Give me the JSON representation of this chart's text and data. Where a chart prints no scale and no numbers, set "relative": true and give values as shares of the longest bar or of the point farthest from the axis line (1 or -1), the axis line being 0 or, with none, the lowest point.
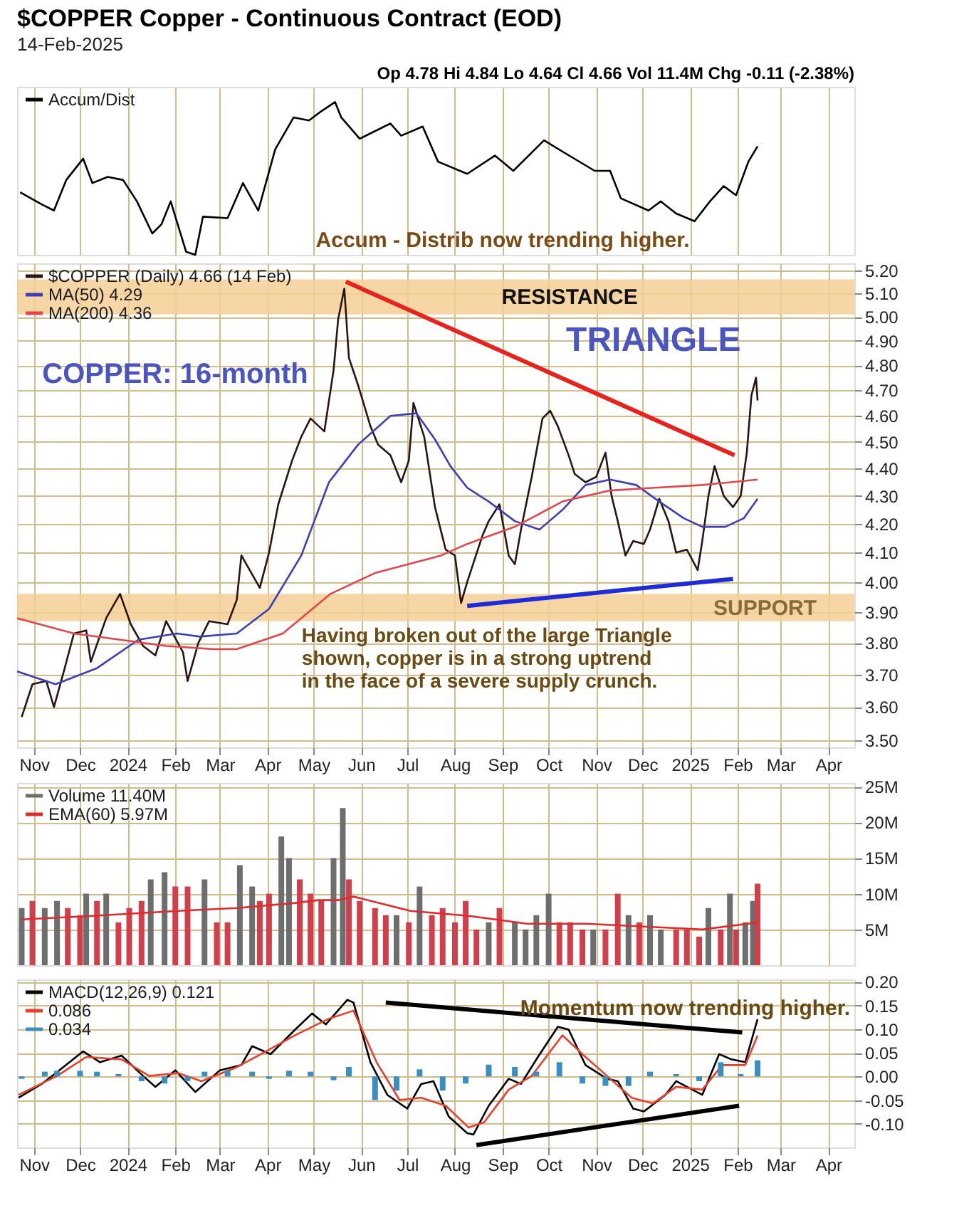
{
  "chart_data": [
    {
      "type": "line",
      "title": "$COPPER Copper - Continuous Contract (EOD)",
      "subtitle": "14-Feb-2025",
      "relative": true,
      "grid": "x",
      "tick_labels": false,
      "legend": "top left",
      "annotations": [
        "Op 4.78  Hi 4.84  Lo 4.64  Cl 4.66  Vol 11.4M  Chg -0.11 (-2.38%)",
        "Accum - Distrib now trending higher."
      ],
      "xlim": [
        "2023-10-21",
        "2025-04-18"
      ],
      "xticks": [
        {
          "value": "2023-11-01",
          "label": null
        },
        {
          "value": "2023-12-01",
          "label": null
        },
        {
          "value": "2024-01-01",
          "label": null
        },
        {
          "value": "2024-02-01",
          "label": null
        },
        {
          "value": "2024-03-01",
          "label": null
        },
        {
          "value": "2024-04-01",
          "label": null
        },
        {
          "value": "2024-05-01",
          "label": null
        },
        {
          "value": "2024-06-01",
          "label": null
        },
        {
          "value": "2024-07-01",
          "label": null
        },
        {
          "value": "2024-08-01",
          "label": null
        },
        {
          "value": "2024-09-01",
          "label": null
        },
        {
          "value": "2024-10-01",
          "label": null
        },
        {
          "value": "2024-11-01",
          "label": null
        },
        {
          "value": "2024-12-01",
          "label": null
        },
        {
          "value": "2025-01-01",
          "label": null
        },
        {
          "value": "2025-02-01",
          "label": null
        },
        {
          "value": "2025-03-01",
          "label": null
        },
        {
          "value": "2025-04-01",
          "label": null
        }
      ],
      "series": [
        {
          "name": "Accum/Dist",
          "color": "#000000",
          "x": [
            "2023-10-23",
            "2023-11-06",
            "2023-11-14",
            "2023-11-22",
            "2023-12-03",
            "2023-12-09",
            "2023-12-19",
            "2023-12-29",
            "2024-01-07",
            "2024-01-17",
            "2024-01-23",
            "2024-01-29",
            "2024-02-08",
            "2024-02-14",
            "2024-02-19",
            "2024-03-06",
            "2024-03-16",
            "2024-03-26",
            "2024-04-06",
            "2024-04-18",
            "2024-04-28",
            "2024-05-06",
            "2024-05-15",
            "2024-05-19",
            "2024-05-31",
            "2024-06-20",
            "2024-06-27",
            "2024-07-11",
            "2024-07-21",
            "2024-08-09",
            "2024-08-27",
            "2024-09-08",
            "2024-09-28",
            "2024-10-11",
            "2024-10-31",
            "2024-11-10",
            "2024-11-17",
            "2024-12-05",
            "2024-12-13",
            "2024-12-23",
            "2025-01-04",
            "2025-01-14",
            "2025-01-23",
            "2025-01-31",
            "2025-02-08",
            "2025-02-14"
          ],
          "values": [
            0.41,
            0.33,
            0.29,
            0.49,
            0.63,
            0.47,
            0.51,
            0.49,
            0.35,
            0.14,
            0.2,
            0.35,
            0.02,
            0.0,
            0.25,
            0.24,
            0.47,
            0.29,
            0.69,
            0.9,
            0.88,
            0.94,
            1.0,
            0.9,
            0.76,
            0.86,
            0.78,
            0.84,
            0.61,
            0.53,
            0.65,
            0.55,
            0.75,
            0.67,
            0.55,
            0.55,
            0.37,
            0.29,
            0.35,
            0.27,
            0.22,
            0.35,
            0.45,
            0.39,
            0.61,
            0.71
          ]
        }
      ]
    },
    {
      "type": "line",
      "log": true,
      "grid": true,
      "legend": "top left",
      "annotations": [
        "COPPER: 16-month",
        "TRIANGLE",
        "Having broken out of the large Triangle\nshown, copper is in a strong uptrend\nin the face of a severe supply crunch."
      ],
      "xlim": [
        "2023-10-21",
        "2025-04-18"
      ],
      "xticks": [
        {
          "value": "2023-11-01",
          "label": "Nov"
        },
        {
          "value": "2023-12-01",
          "label": "Dec"
        },
        {
          "value": "2024-01-01",
          "label": "2024"
        },
        {
          "value": "2024-02-01",
          "label": "Feb"
        },
        {
          "value": "2024-03-01",
          "label": "Mar"
        },
        {
          "value": "2024-04-01",
          "label": "Apr"
        },
        {
          "value": "2024-05-01",
          "label": "May"
        },
        {
          "value": "2024-06-01",
          "label": "Jun"
        },
        {
          "value": "2024-07-01",
          "label": "Jul"
        },
        {
          "value": "2024-08-01",
          "label": "Aug"
        },
        {
          "value": "2024-09-01",
          "label": "Sep"
        },
        {
          "value": "2024-10-01",
          "label": "Oct"
        },
        {
          "value": "2024-11-01",
          "label": "Nov"
        },
        {
          "value": "2024-12-01",
          "label": "Dec"
        },
        {
          "value": "2025-01-01",
          "label": "2025"
        },
        {
          "value": "2025-02-01",
          "label": "Feb"
        },
        {
          "value": "2025-03-01",
          "label": "Mar"
        },
        {
          "value": "2025-04-01",
          "label": "Apr"
        }
      ],
      "ylim": [
        3.48,
        5.23
      ],
      "yticks": [
        {
          "value": 3.5,
          "label": "3.50"
        },
        {
          "value": 3.6,
          "label": "3.60"
        },
        {
          "value": 3.7,
          "label": "3.70"
        },
        {
          "value": 3.8,
          "label": "3.80"
        },
        {
          "value": 3.9,
          "label": "3.90"
        },
        {
          "value": 4.0,
          "label": "4.00"
        },
        {
          "value": 4.1,
          "label": "4.10"
        },
        {
          "value": 4.2,
          "label": "4.20"
        },
        {
          "value": 4.3,
          "label": "4.30"
        },
        {
          "value": 4.4,
          "label": "4.40"
        },
        {
          "value": 4.5,
          "label": "4.50"
        },
        {
          "value": 4.6,
          "label": "4.60"
        },
        {
          "value": 4.7,
          "label": "4.70"
        },
        {
          "value": 4.8,
          "label": "4.80"
        },
        {
          "value": 4.9,
          "label": "4.90"
        },
        {
          "value": 5.0,
          "label": "5.00"
        },
        {
          "value": 5.1,
          "label": "5.10"
        },
        {
          "value": 5.2,
          "label": "5.20"
        }
      ],
      "bands": [
        {
          "axis": "y",
          "from": 5.01,
          "to": 5.16,
          "label": "RESISTANCE",
          "color": "#f6cf96"
        },
        {
          "axis": "y",
          "from": 3.87,
          "to": 3.96,
          "label": "SUPPORT",
          "color": "#f6cf96"
        }
      ],
      "series": [
        {
          "name": "$COPPER (Daily) 4.66 (14 Feb)",
          "color": "#2a1414",
          "x": [
            "2023-10-24",
            "2023-10-31",
            "2023-11-09",
            "2023-11-14",
            "2023-11-21",
            "2023-11-27",
            "2023-12-05",
            "2023-12-08",
            "2023-12-18",
            "2023-12-27",
            "2024-01-03",
            "2024-01-11",
            "2024-01-19",
            "2024-01-26",
            "2024-02-06",
            "2024-02-09",
            "2024-02-16",
            "2024-02-23",
            "2024-03-06",
            "2024-03-12",
            "2024-03-15",
            "2024-03-27",
            "2024-04-02",
            "2024-04-08",
            "2024-04-17",
            "2024-04-23",
            "2024-04-29",
            "2024-05-08",
            "2024-05-14",
            "2024-05-17",
            "2024-05-21",
            "2024-05-24",
            "2024-05-30",
            "2024-06-07",
            "2024-06-12",
            "2024-06-20",
            "2024-06-27",
            "2024-07-02",
            "2024-07-05",
            "2024-07-12",
            "2024-07-19",
            "2024-07-26",
            "2024-08-01",
            "2024-08-05",
            "2024-08-09",
            "2024-08-19",
            "2024-08-23",
            "2024-08-30",
            "2024-09-05",
            "2024-09-09",
            "2024-09-13",
            "2024-09-20",
            "2024-09-27",
            "2024-10-02",
            "2024-10-07",
            "2024-10-14",
            "2024-10-18",
            "2024-10-25",
            "2024-11-01",
            "2024-11-07",
            "2024-11-11",
            "2024-11-15",
            "2024-11-20",
            "2024-11-25",
            "2024-12-02",
            "2024-12-06",
            "2024-12-12",
            "2024-12-18",
            "2024-12-23",
            "2024-12-30",
            "2025-01-06",
            "2025-01-09",
            "2025-01-13",
            "2025-01-17",
            "2025-01-23",
            "2025-01-29",
            "2025-02-03",
            "2025-02-07",
            "2025-02-10",
            "2025-02-13",
            "2025-02-14"
          ],
          "values": [
            3.57,
            3.67,
            3.68,
            3.6,
            3.72,
            3.83,
            3.84,
            3.74,
            3.88,
            3.96,
            3.86,
            3.79,
            3.76,
            3.87,
            3.77,
            3.68,
            3.8,
            3.87,
            3.86,
            3.94,
            4.09,
            3.98,
            4.1,
            4.27,
            4.43,
            4.52,
            4.59,
            4.54,
            4.78,
            4.99,
            5.12,
            4.83,
            4.72,
            4.56,
            4.49,
            4.45,
            4.35,
            4.43,
            4.65,
            4.52,
            4.26,
            4.11,
            4.09,
            3.93,
            4.0,
            4.16,
            4.21,
            4.27,
            4.09,
            4.06,
            4.18,
            4.37,
            4.59,
            4.62,
            4.56,
            4.45,
            4.38,
            4.35,
            4.37,
            4.46,
            4.3,
            4.21,
            4.09,
            4.14,
            4.13,
            4.18,
            4.29,
            4.21,
            4.1,
            4.11,
            4.04,
            4.14,
            4.3,
            4.41,
            4.3,
            4.26,
            4.3,
            4.46,
            4.68,
            4.75,
            4.66
          ]
        },
        {
          "name": "MA(50) 4.29",
          "color": "#3b41b5",
          "x": [
            "2023-10-21",
            "2023-11-15",
            "2023-12-12",
            "2024-01-08",
            "2024-02-02",
            "2024-02-17",
            "2024-03-12",
            "2024-04-02",
            "2024-04-23",
            "2024-05-11",
            "2024-05-30",
            "2024-06-20",
            "2024-07-07",
            "2024-07-19",
            "2024-07-29",
            "2024-08-09",
            "2024-08-23",
            "2024-09-09",
            "2024-09-25",
            "2024-10-10",
            "2024-10-25",
            "2024-11-10",
            "2024-11-27",
            "2024-12-12",
            "2024-12-28",
            "2025-01-09",
            "2025-01-24",
            "2025-02-05",
            "2025-02-14"
          ],
          "values": [
            3.71,
            3.67,
            3.72,
            3.81,
            3.83,
            3.82,
            3.83,
            3.91,
            4.09,
            4.35,
            4.49,
            4.6,
            4.61,
            4.51,
            4.41,
            4.33,
            4.28,
            4.21,
            4.18,
            4.25,
            4.34,
            4.36,
            4.34,
            4.28,
            4.22,
            4.19,
            4.19,
            4.22,
            4.29
          ]
        },
        {
          "name": "MA(200) 4.36",
          "color": "#e0474a",
          "x": [
            "2023-10-21",
            "2023-11-27",
            "2023-12-27",
            "2024-01-26",
            "2024-02-26",
            "2024-03-12",
            "2024-04-11",
            "2024-05-12",
            "2024-06-10",
            "2024-07-23",
            "2024-08-09",
            "2024-09-09",
            "2024-10-10",
            "2024-11-10",
            "2024-12-09",
            "2025-01-09",
            "2025-02-14"
          ],
          "values": [
            3.88,
            3.83,
            3.81,
            3.79,
            3.78,
            3.78,
            3.83,
            3.96,
            4.03,
            4.09,
            4.13,
            4.19,
            4.28,
            4.32,
            4.33,
            4.34,
            4.36
          ]
        },
        {
          "color": "#e8231e",
          "x": [
            "2024-05-22",
            "2025-01-30"
          ],
          "values": [
            5.15,
            4.45
          ]
        },
        {
          "color": "#1f2bd6",
          "x": [
            "2024-08-09",
            "2025-01-29"
          ],
          "values": [
            3.92,
            4.01
          ]
        }
      ]
    },
    {
      "type": "bar",
      "grid": true,
      "tick_labels": "y",
      "legend": "top left",
      "xlim": [
        "2023-10-21",
        "2025-04-18"
      ],
      "xticks": [
        {
          "value": "2023-11-01",
          "label": null
        },
        {
          "value": "2023-12-01",
          "label": null
        },
        {
          "value": "2024-01-01",
          "label": null
        },
        {
          "value": "2024-02-01",
          "label": null
        },
        {
          "value": "2024-03-01",
          "label": null
        },
        {
          "value": "2024-04-01",
          "label": null
        },
        {
          "value": "2024-05-01",
          "label": null
        },
        {
          "value": "2024-06-01",
          "label": null
        },
        {
          "value": "2024-07-01",
          "label": null
        },
        {
          "value": "2024-08-01",
          "label": null
        },
        {
          "value": "2024-09-01",
          "label": null
        },
        {
          "value": "2024-10-01",
          "label": null
        },
        {
          "value": "2024-11-01",
          "label": null
        },
        {
          "value": "2024-12-01",
          "label": null
        },
        {
          "value": "2025-01-01",
          "label": null
        },
        {
          "value": "2025-02-01",
          "label": null
        },
        {
          "value": "2025-03-01",
          "label": null
        },
        {
          "value": "2025-04-01",
          "label": null
        }
      ],
      "ylim": [
        0,
        25.5
      ],
      "yticks": [
        {
          "value": 5,
          "label": "5M"
        },
        {
          "value": 10,
          "label": "10M"
        },
        {
          "value": 15,
          "label": "15M"
        },
        {
          "value": 20,
          "label": "20M"
        },
        {
          "value": 25,
          "label": "25M"
        }
      ],
      "series": [
        {
          "name": "Volume 11.40M",
          "x": [
            "2023-10-24",
            "2023-10-31",
            "2023-11-08",
            "2023-11-16",
            "2023-11-23",
            "2023-12-01",
            "2023-12-05",
            "2023-12-12",
            "2023-12-18",
            "2023-12-26",
            "2024-01-02",
            "2024-01-10",
            "2024-01-16",
            "2024-01-25",
            "2024-02-01",
            "2024-02-09",
            "2024-02-20",
            "2024-02-28",
            "2024-03-06",
            "2024-03-14",
            "2024-03-22",
            "2024-03-27",
            "2024-04-02",
            "2024-04-10",
            "2024-04-15",
            "2024-04-22",
            "2024-04-29",
            "2024-05-06",
            "2024-05-14",
            "2024-05-20",
            "2024-05-24",
            "2024-05-31",
            "2024-06-10",
            "2024-06-17",
            "2024-06-24",
            "2024-07-02",
            "2024-07-09",
            "2024-07-17",
            "2024-07-24",
            "2024-08-01",
            "2024-08-08",
            "2024-08-15",
            "2024-08-23",
            "2024-08-30",
            "2024-09-09",
            "2024-09-16",
            "2024-09-23",
            "2024-10-01",
            "2024-10-08",
            "2024-10-15",
            "2024-10-23",
            "2024-10-30",
            "2024-11-07",
            "2024-11-15",
            "2024-11-22",
            "2024-11-29",
            "2024-12-06",
            "2024-12-13",
            "2024-12-23",
            "2024-12-30",
            "2025-01-07",
            "2025-01-13",
            "2025-01-21",
            "2025-01-27",
            "2025-01-31",
            "2025-02-06",
            "2025-02-11",
            "2025-02-14"
          ],
          "values": [
            8,
            9,
            8,
            9,
            8,
            7,
            10,
            9,
            10,
            6,
            8,
            9,
            12,
            13,
            11,
            11,
            12,
            6,
            6,
            14,
            11,
            9,
            10,
            18,
            15,
            12,
            10,
            9,
            15,
            22,
            12,
            9,
            8,
            7,
            7,
            6,
            11,
            7,
            8,
            6,
            9,
            5,
            6,
            8,
            6,
            5,
            7,
            10,
            6,
            6,
            5,
            5,
            5,
            10,
            7,
            6,
            7,
            5,
            5,
            5,
            4,
            8,
            5,
            10,
            5,
            6,
            9,
            11.4
          ],
          "colors": [
            "#6e6e6e",
            "#d0404c",
            "#6e6e6e",
            "#6e6e6e",
            "#d0404c",
            "#d0404c",
            "#6e6e6e",
            "#d0404c",
            "#6e6e6e",
            "#d0404c",
            "#d0404c",
            "#d0404c",
            "#6e6e6e",
            "#6e6e6e",
            "#d0404c",
            "#d0404c",
            "#6e6e6e",
            "#d0404c",
            "#d0404c",
            "#6e6e6e",
            "#6e6e6e",
            "#d0404c",
            "#d0404c",
            "#6e6e6e",
            "#6e6e6e",
            "#d0404c",
            "#d0404c",
            "#d0404c",
            "#6e6e6e",
            "#6e6e6e",
            "#d0404c",
            "#d0404c",
            "#d0404c",
            "#d0404c",
            "#6e6e6e",
            "#d0404c",
            "#6e6e6e",
            "#d0404c",
            "#d0404c",
            "#d0404c",
            "#d0404c",
            "#d0404c",
            "#6e6e6e",
            "#d0404c",
            "#6e6e6e",
            "#6e6e6e",
            "#6e6e6e",
            "#6e6e6e",
            "#d0404c",
            "#d0404c",
            "#d0404c",
            "#6e6e6e",
            "#d0404c",
            "#d0404c",
            "#6e6e6e",
            "#d0404c",
            "#6e6e6e",
            "#6e6e6e",
            "#d0404c",
            "#d0404c",
            "#d0404c",
            "#6e6e6e",
            "#d0404c",
            "#6e6e6e",
            "#d0404c",
            "#6e6e6e",
            "#6e6e6e",
            "#d0404c"
          ]
        },
        {
          "name": "EMA(60) 5.97M",
          "type": "line",
          "color": "#e02a2a",
          "x": [
            "2023-10-24",
            "2023-12-09",
            "2024-02-03",
            "2024-03-12",
            "2024-04-19",
            "2024-05-04",
            "2024-05-17",
            "2024-05-27",
            "2024-07-03",
            "2024-08-10",
            "2024-09-17",
            "2024-10-25",
            "2024-12-02",
            "2025-01-09",
            "2025-02-14"
          ],
          "values": [
            6.4,
            6.9,
            7.6,
            8.0,
            8.7,
            9.1,
            9.1,
            9.6,
            7.6,
            6.9,
            5.8,
            5.8,
            5.4,
            5.0,
            5.97
          ]
        }
      ]
    },
    {
      "type": "line",
      "grid": true,
      "legend": "top left",
      "annotations": [
        "Momentum now trending higher."
      ],
      "xlim": [
        "2023-10-21",
        "2025-04-18"
      ],
      "xticks": [
        {
          "value": "2023-11-01",
          "label": "Nov"
        },
        {
          "value": "2023-12-01",
          "label": "Dec"
        },
        {
          "value": "2024-01-01",
          "label": "2024"
        },
        {
          "value": "2024-02-01",
          "label": "Feb"
        },
        {
          "value": "2024-03-01",
          "label": "Mar"
        },
        {
          "value": "2024-04-01",
          "label": "Apr"
        },
        {
          "value": "2024-05-01",
          "label": "May"
        },
        {
          "value": "2024-06-01",
          "label": "Jun"
        },
        {
          "value": "2024-07-01",
          "label": "Jul"
        },
        {
          "value": "2024-08-01",
          "label": "Aug"
        },
        {
          "value": "2024-09-01",
          "label": "Sep"
        },
        {
          "value": "2024-10-01",
          "label": "Oct"
        },
        {
          "value": "2024-11-01",
          "label": "Nov"
        },
        {
          "value": "2024-12-01",
          "label": "Dec"
        },
        {
          "value": "2025-01-01",
          "label": "2025"
        },
        {
          "value": "2025-02-01",
          "label": "Feb"
        },
        {
          "value": "2025-03-01",
          "label": "Mar"
        },
        {
          "value": "2025-04-01",
          "label": "Apr"
        }
      ],
      "ylim": [
        -0.15,
        0.205
      ],
      "yticks": [
        {
          "value": -0.1,
          "label": "-0.10"
        },
        {
          "value": -0.05,
          "label": "-0.05"
        },
        {
          "value": 0,
          "label": "0.00"
        },
        {
          "value": 0.05,
          "label": "0.05"
        },
        {
          "value": 0.1,
          "label": "0.10"
        },
        {
          "value": 0.15,
          "label": "0.15"
        },
        {
          "value": 0.2,
          "label": "0.20"
        }
      ],
      "series": [
        {
          "name": "MACD(12,26,9) 0.121",
          "color": "#000000",
          "x": [
            "2023-10-22",
            "2023-11-06",
            "2023-11-16",
            "2023-12-03",
            "2023-12-14",
            "2023-12-28",
            "2024-01-11",
            "2024-01-19",
            "2024-02-01",
            "2024-02-14",
            "2024-03-01",
            "2024-03-15",
            "2024-03-22",
            "2024-04-03",
            "2024-04-19",
            "2024-04-30",
            "2024-05-09",
            "2024-05-23",
            "2024-05-27",
            "2024-06-07",
            "2024-06-18",
            "2024-07-01",
            "2024-07-10",
            "2024-07-18",
            "2024-07-28",
            "2024-08-09",
            "2024-08-13",
            "2024-08-23",
            "2024-09-05",
            "2024-09-13",
            "2024-09-24",
            "2024-10-07",
            "2024-10-14",
            "2024-10-25",
            "2024-11-08",
            "2024-11-15",
            "2024-11-25",
            "2024-12-02",
            "2024-12-16",
            "2024-12-23",
            "2025-01-09",
            "2025-01-20",
            "2025-01-28",
            "2025-02-06",
            "2025-02-11",
            "2025-02-14"
          ],
          "values": [
            -0.045,
            -0.016,
            0.009,
            0.053,
            0.03,
            0.044,
            0.001,
            -0.022,
            0.013,
            -0.033,
            0.013,
            0.024,
            0.064,
            0.047,
            0.099,
            0.133,
            0.11,
            0.162,
            0.156,
            0.03,
            -0.039,
            -0.068,
            -0.016,
            -0.01,
            -0.085,
            -0.12,
            -0.123,
            -0.062,
            -0.005,
            -0.016,
            0.041,
            0.105,
            0.099,
            0.024,
            -0.005,
            -0.01,
            -0.068,
            -0.074,
            -0.039,
            -0.01,
            -0.039,
            0.047,
            0.036,
            0.03,
            0.087,
            0.121
          ]
        },
        {
          "name": "0.086",
          "color": "#e8402a",
          "x": [
            "2023-10-22",
            "2023-11-16",
            "2023-12-05",
            "2023-12-28",
            "2024-01-15",
            "2024-02-03",
            "2024-02-18",
            "2024-03-11",
            "2024-03-31",
            "2024-04-19",
            "2024-05-11",
            "2024-05-27",
            "2024-06-11",
            "2024-06-26",
            "2024-07-10",
            "2024-07-26",
            "2024-08-10",
            "2024-08-20",
            "2024-09-05",
            "2024-09-20",
            "2024-10-10",
            "2024-10-25",
            "2024-11-08",
            "2024-11-24",
            "2024-12-08",
            "2024-12-23",
            "2025-01-09",
            "2025-01-22",
            "2025-02-06",
            "2025-02-14"
          ],
          "values": [
            -0.039,
            0.001,
            0.041,
            0.036,
            0.001,
            0.007,
            -0.01,
            0.018,
            0.053,
            0.087,
            0.122,
            0.139,
            0.03,
            -0.05,
            -0.045,
            -0.062,
            -0.108,
            -0.097,
            -0.028,
            0.001,
            0.087,
            0.041,
            0.001,
            -0.045,
            -0.057,
            -0.022,
            -0.028,
            0.024,
            0.024,
            0.086
          ]
        },
        {
          "name": "0.034",
          "type": "bar",
          "color": "#3a8fc0",
          "x": [
            "2023-10-24",
            "2023-11-08",
            "2023-11-16",
            "2023-12-01",
            "2023-12-12",
            "2023-12-26",
            "2024-01-10",
            "2024-01-25",
            "2024-02-09",
            "2024-02-20",
            "2024-03-06",
            "2024-03-22",
            "2024-04-02",
            "2024-04-15",
            "2024-04-29",
            "2024-05-14",
            "2024-05-24",
            "2024-06-10",
            "2024-06-24",
            "2024-07-09",
            "2024-07-24",
            "2024-08-08",
            "2024-08-23",
            "2024-09-09",
            "2024-09-23",
            "2024-10-08",
            "2024-10-23",
            "2024-11-07",
            "2024-11-22",
            "2024-12-06",
            "2024-12-23",
            "2025-01-07",
            "2025-01-21",
            "2025-02-03",
            "2025-02-14"
          ],
          "values": [
            -0.005,
            0.01,
            0.012,
            0.012,
            0.01,
            0.005,
            -0.01,
            -0.015,
            -0.01,
            0.01,
            0.012,
            0.01,
            -0.005,
            0.012,
            0.01,
            -0.008,
            0.02,
            -0.05,
            -0.03,
            0.015,
            -0.03,
            -0.015,
            0.025,
            0.02,
            0.01,
            0.03,
            -0.015,
            -0.02,
            -0.02,
            0.01,
            0.005,
            -0.01,
            0.03,
            0.005,
            0.034
          ]
        },
        {
          "color": "#000000",
          "x": [
            "2024-06-17",
            "2025-02-04"
          ],
          "values": [
            0.156,
            0.093
          ]
        },
        {
          "color": "#000000",
          "x": [
            "2024-08-15",
            "2025-02-02"
          ],
          "values": [
            -0.145,
            -0.062
          ]
        }
      ]
    }
  ]
}
